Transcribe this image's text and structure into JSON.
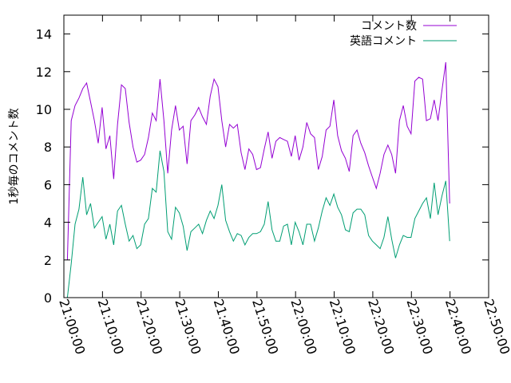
{
  "chart_data": {
    "type": "line",
    "ylabel": "1秒毎のコメント数",
    "ylim": [
      0,
      15
    ],
    "yticks": [
      0,
      2,
      4,
      6,
      8,
      10,
      12,
      14
    ],
    "x_unit": "minutes from 21:00:00",
    "xlim": [
      0,
      110
    ],
    "xtick_values": [
      0,
      10,
      20,
      30,
      40,
      50,
      60,
      70,
      80,
      90,
      100,
      110
    ],
    "xtick_labels": [
      "21:00:00",
      "21:10:00",
      "21:20:00",
      "21:30:00",
      "21:40:00",
      "21:50:00",
      "22:00:00",
      "22:10:00",
      "22:20:00",
      "22:30:00",
      "22:40:00",
      "22:50:00"
    ],
    "legend_position": "top-right",
    "grid": false,
    "series": [
      {
        "name": "コメント数",
        "color": "#9400d3",
        "points": [
          [
            0.9,
            2.0
          ],
          [
            1.9,
            9.4
          ],
          [
            2.9,
            10.2
          ],
          [
            3.9,
            10.6
          ],
          [
            4.9,
            11.1
          ],
          [
            5.9,
            11.4
          ],
          [
            6.9,
            10.4
          ],
          [
            7.9,
            9.4
          ],
          [
            8.9,
            8.2
          ],
          [
            9.9,
            10.1
          ],
          [
            10.9,
            7.9
          ],
          [
            11.9,
            8.6
          ],
          [
            12.9,
            6.3
          ],
          [
            13.9,
            9.2
          ],
          [
            14.9,
            11.3
          ],
          [
            15.9,
            11.1
          ],
          [
            16.9,
            9.3
          ],
          [
            17.9,
            8.0
          ],
          [
            18.9,
            7.2
          ],
          [
            19.9,
            7.3
          ],
          [
            20.9,
            7.6
          ],
          [
            21.9,
            8.5
          ],
          [
            22.9,
            9.8
          ],
          [
            23.9,
            9.4
          ],
          [
            24.9,
            11.6
          ],
          [
            25.9,
            9.4
          ],
          [
            26.9,
            6.6
          ],
          [
            27.9,
            8.9
          ],
          [
            28.9,
            10.2
          ],
          [
            29.9,
            8.9
          ],
          [
            30.9,
            9.1
          ],
          [
            31.9,
            7.1
          ],
          [
            32.9,
            9.4
          ],
          [
            33.9,
            9.7
          ],
          [
            34.9,
            10.1
          ],
          [
            35.9,
            9.6
          ],
          [
            36.9,
            9.2
          ],
          [
            37.9,
            10.7
          ],
          [
            38.9,
            11.6
          ],
          [
            39.9,
            11.2
          ],
          [
            40.9,
            9.4
          ],
          [
            41.9,
            8.0
          ],
          [
            42.9,
            9.2
          ],
          [
            43.9,
            9.0
          ],
          [
            44.9,
            9.2
          ],
          [
            45.9,
            7.7
          ],
          [
            46.9,
            6.8
          ],
          [
            47.9,
            7.9
          ],
          [
            48.9,
            7.6
          ],
          [
            49.9,
            6.8
          ],
          [
            50.9,
            6.9
          ],
          [
            51.9,
            7.9
          ],
          [
            52.9,
            8.8
          ],
          [
            53.9,
            7.4
          ],
          [
            54.9,
            8.3
          ],
          [
            55.9,
            8.5
          ],
          [
            56.9,
            8.4
          ],
          [
            57.9,
            8.3
          ],
          [
            58.9,
            7.5
          ],
          [
            59.9,
            8.6
          ],
          [
            60.9,
            7.3
          ],
          [
            61.9,
            8.0
          ],
          [
            62.9,
            9.3
          ],
          [
            63.9,
            8.7
          ],
          [
            64.9,
            8.5
          ],
          [
            65.9,
            6.8
          ],
          [
            66.9,
            7.5
          ],
          [
            67.9,
            8.9
          ],
          [
            68.9,
            9.1
          ],
          [
            69.9,
            10.5
          ],
          [
            70.9,
            8.6
          ],
          [
            71.9,
            7.8
          ],
          [
            72.9,
            7.4
          ],
          [
            73.9,
            6.7
          ],
          [
            74.9,
            8.6
          ],
          [
            75.9,
            8.9
          ],
          [
            76.9,
            8.2
          ],
          [
            77.9,
            7.7
          ],
          [
            78.9,
            7.0
          ],
          [
            79.9,
            6.4
          ],
          [
            80.9,
            5.8
          ],
          [
            81.9,
            6.6
          ],
          [
            82.9,
            7.6
          ],
          [
            83.9,
            8.1
          ],
          [
            84.9,
            7.6
          ],
          [
            85.9,
            6.6
          ],
          [
            86.9,
            9.4
          ],
          [
            87.9,
            10.2
          ],
          [
            88.9,
            9.1
          ],
          [
            89.9,
            8.7
          ],
          [
            90.9,
            11.5
          ],
          [
            91.9,
            11.7
          ],
          [
            92.9,
            11.6
          ],
          [
            93.9,
            9.4
          ],
          [
            94.9,
            9.5
          ],
          [
            95.9,
            10.5
          ],
          [
            96.9,
            9.4
          ],
          [
            97.9,
            11.0
          ],
          [
            98.9,
            12.5
          ],
          [
            99.9,
            5.0
          ]
        ]
      },
      {
        "name": "英語コメント",
        "color": "#009e73",
        "points": [
          [
            0.9,
            0.0
          ],
          [
            1.9,
            1.8
          ],
          [
            2.9,
            3.9
          ],
          [
            3.9,
            4.7
          ],
          [
            4.9,
            6.4
          ],
          [
            5.9,
            4.4
          ],
          [
            6.9,
            5.0
          ],
          [
            7.9,
            3.7
          ],
          [
            8.9,
            4.0
          ],
          [
            9.9,
            4.3
          ],
          [
            10.9,
            3.1
          ],
          [
            11.9,
            3.9
          ],
          [
            12.9,
            2.8
          ],
          [
            13.9,
            4.6
          ],
          [
            14.9,
            4.9
          ],
          [
            15.9,
            3.9
          ],
          [
            16.9,
            3.0
          ],
          [
            17.9,
            3.3
          ],
          [
            18.9,
            2.6
          ],
          [
            19.9,
            2.8
          ],
          [
            20.9,
            3.9
          ],
          [
            21.9,
            4.2
          ],
          [
            22.9,
            5.8
          ],
          [
            23.9,
            5.6
          ],
          [
            24.9,
            7.8
          ],
          [
            25.9,
            6.7
          ],
          [
            26.9,
            3.5
          ],
          [
            27.9,
            3.1
          ],
          [
            28.9,
            4.8
          ],
          [
            29.9,
            4.5
          ],
          [
            30.9,
            3.8
          ],
          [
            31.9,
            2.5
          ],
          [
            32.9,
            3.5
          ],
          [
            33.9,
            3.7
          ],
          [
            34.9,
            3.9
          ],
          [
            35.9,
            3.4
          ],
          [
            36.9,
            4.1
          ],
          [
            37.9,
            4.6
          ],
          [
            38.9,
            4.2
          ],
          [
            39.9,
            4.9
          ],
          [
            40.9,
            6.0
          ],
          [
            41.9,
            4.1
          ],
          [
            42.9,
            3.5
          ],
          [
            43.9,
            3.0
          ],
          [
            44.9,
            3.4
          ],
          [
            45.9,
            3.3
          ],
          [
            46.9,
            2.8
          ],
          [
            47.9,
            3.2
          ],
          [
            48.9,
            3.4
          ],
          [
            49.9,
            3.4
          ],
          [
            50.9,
            3.5
          ],
          [
            51.9,
            3.9
          ],
          [
            52.9,
            5.1
          ],
          [
            53.9,
            3.6
          ],
          [
            54.9,
            3.0
          ],
          [
            55.9,
            3.0
          ],
          [
            56.9,
            3.8
          ],
          [
            57.9,
            3.9
          ],
          [
            58.9,
            2.8
          ],
          [
            59.9,
            4.0
          ],
          [
            60.9,
            3.5
          ],
          [
            61.9,
            2.8
          ],
          [
            62.9,
            3.9
          ],
          [
            63.9,
            3.9
          ],
          [
            64.9,
            3.0
          ],
          [
            65.9,
            3.7
          ],
          [
            66.9,
            4.6
          ],
          [
            67.9,
            5.3
          ],
          [
            68.9,
            4.9
          ],
          [
            69.9,
            5.5
          ],
          [
            70.9,
            4.8
          ],
          [
            71.9,
            4.4
          ],
          [
            72.9,
            3.6
          ],
          [
            73.9,
            3.5
          ],
          [
            74.9,
            4.5
          ],
          [
            75.9,
            4.7
          ],
          [
            76.9,
            4.7
          ],
          [
            77.9,
            4.4
          ],
          [
            78.9,
            3.3
          ],
          [
            79.9,
            3.0
          ],
          [
            80.9,
            2.8
          ],
          [
            81.9,
            2.6
          ],
          [
            82.9,
            3.2
          ],
          [
            83.9,
            4.3
          ],
          [
            84.9,
            3.1
          ],
          [
            85.9,
            2.1
          ],
          [
            86.9,
            2.8
          ],
          [
            87.9,
            3.3
          ],
          [
            88.9,
            3.2
          ],
          [
            89.9,
            3.2
          ],
          [
            90.9,
            4.2
          ],
          [
            91.9,
            4.6
          ],
          [
            92.9,
            5.0
          ],
          [
            93.9,
            5.3
          ],
          [
            94.9,
            4.2
          ],
          [
            95.9,
            6.1
          ],
          [
            96.9,
            4.4
          ],
          [
            97.9,
            5.4
          ],
          [
            98.9,
            6.2
          ],
          [
            99.9,
            3.0
          ]
        ]
      }
    ]
  }
}
